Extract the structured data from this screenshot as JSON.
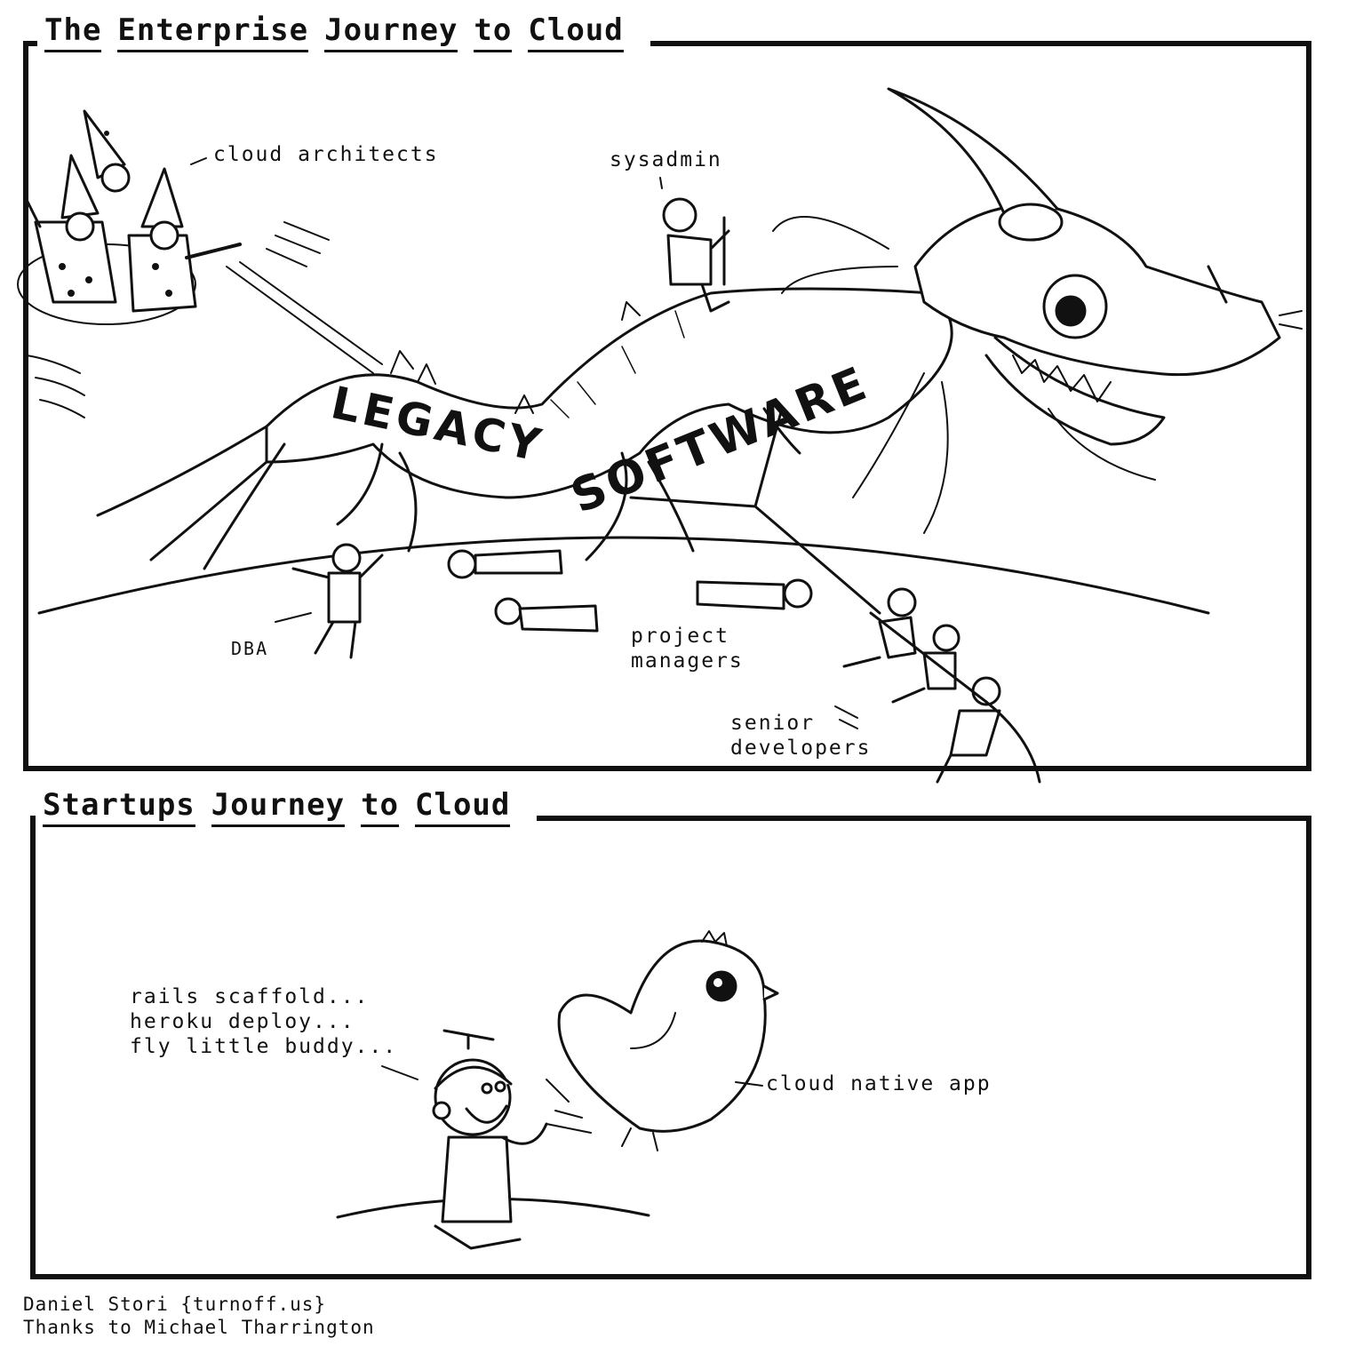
{
  "panels": {
    "top": {
      "title_words": [
        "The",
        "Enterprise",
        "Journey",
        "to",
        "Cloud"
      ],
      "dragon_text_1": "LEGACY",
      "dragon_text_2": "SOFTWARE",
      "labels": {
        "cloud_architects": "cloud architects",
        "sysadmin": "sysadmin",
        "dba": "DBA",
        "project_managers": "project\nmanagers",
        "senior_developers": "senior\ndevelopers"
      }
    },
    "bottom": {
      "title_words": [
        "Startups",
        "Journey",
        "to",
        "Cloud"
      ],
      "speech": "rails scaffold...\nheroku deploy...\nfly little buddy...",
      "bird_label": "cloud native app"
    }
  },
  "credits": {
    "line1": "Daniel Stori {turnoff.us}",
    "line2": "Thanks to Michael Tharrington"
  }
}
